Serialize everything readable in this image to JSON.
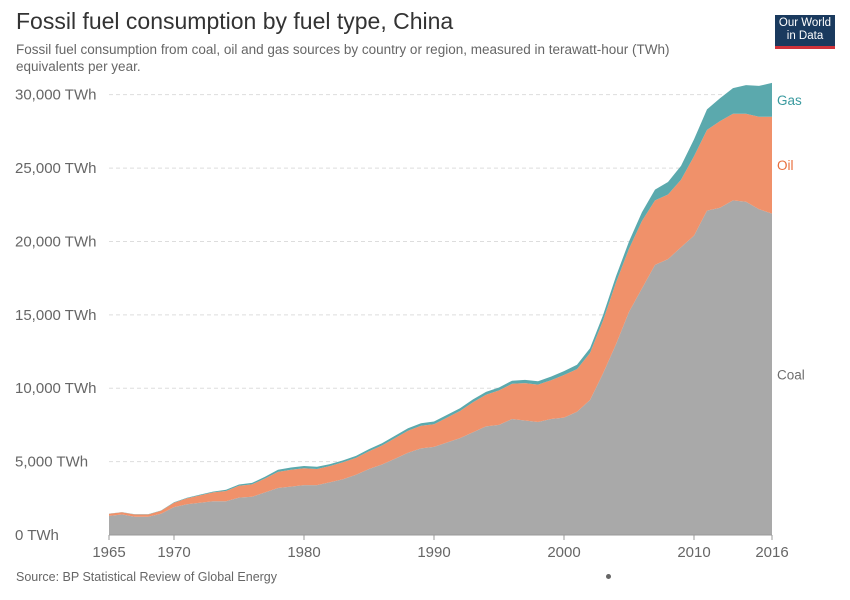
{
  "header": {
    "title": "Fossil fuel consumption by fuel type, China",
    "subtitle": "Fossil fuel consumption from coal, oil and gas sources by country or region, measured in terawatt-hour (TWh) equivalents per year.",
    "logo_line1": "Our World",
    "logo_line2": "in Data"
  },
  "footer": {
    "source": "Source: BP Statistical Review of Global Energy"
  },
  "colors": {
    "coal": "#a9a9a9",
    "oil": "#f0916a",
    "gas": "#5ba9ad",
    "coal_label": "#6e6e6e",
    "oil_label": "#e8703e",
    "gas_label": "#3a9a9f"
  },
  "chart_data": {
    "type": "area",
    "stacked": true,
    "x": [
      1965,
      1966,
      1967,
      1968,
      1969,
      1970,
      1971,
      1972,
      1973,
      1974,
      1975,
      1976,
      1977,
      1978,
      1979,
      1980,
      1981,
      1982,
      1983,
      1984,
      1985,
      1986,
      1987,
      1988,
      1989,
      1990,
      1991,
      1992,
      1993,
      1994,
      1995,
      1996,
      1997,
      1998,
      1999,
      2000,
      2001,
      2002,
      2003,
      2004,
      2005,
      2006,
      2007,
      2008,
      2009,
      2010,
      2011,
      2012,
      2013,
      2014,
      2015,
      2016
    ],
    "series": [
      {
        "name": "Coal",
        "values": [
          1300,
          1400,
          1250,
          1250,
          1450,
          1900,
          2100,
          2200,
          2300,
          2300,
          2550,
          2600,
          2900,
          3200,
          3300,
          3400,
          3400,
          3600,
          3800,
          4100,
          4500,
          4800,
          5200,
          5600,
          5900,
          6000,
          6300,
          6600,
          7000,
          7400,
          7500,
          7900,
          7800,
          7700,
          7900,
          8000,
          8400,
          9200,
          11000,
          13000,
          15200,
          16800,
          18400,
          18800,
          19600,
          20400,
          22100,
          22300,
          22800,
          22700,
          22200,
          21900
        ]
      },
      {
        "name": "Oil",
        "values": [
          150,
          150,
          150,
          150,
          200,
          300,
          400,
          500,
          600,
          700,
          800,
          850,
          950,
          1100,
          1150,
          1150,
          1100,
          1100,
          1150,
          1150,
          1200,
          1300,
          1400,
          1500,
          1550,
          1550,
          1700,
          1850,
          2050,
          2150,
          2350,
          2400,
          2550,
          2550,
          2650,
          2900,
          2900,
          3200,
          3600,
          4200,
          4300,
          4600,
          4400,
          4400,
          4600,
          5400,
          5500,
          5900,
          5900,
          6000,
          6300,
          6600
        ]
      },
      {
        "name": "Gas",
        "values": [
          10,
          10,
          10,
          10,
          20,
          30,
          40,
          50,
          60,
          80,
          90,
          100,
          120,
          140,
          150,
          150,
          150,
          130,
          130,
          140,
          150,
          150,
          160,
          170,
          170,
          180,
          180,
          190,
          190,
          200,
          200,
          210,
          220,
          230,
          240,
          270,
          300,
          320,
          370,
          430,
          500,
          600,
          730,
          850,
          950,
          1150,
          1400,
          1550,
          1750,
          1950,
          2100,
          2300
        ]
      }
    ],
    "ylim": [
      0,
      31000
    ],
    "yticks": [
      "0 TWh",
      "5,000 TWh",
      "10,000 TWh",
      "15,000 TWh",
      "20,000 TWh",
      "25,000 TWh",
      "30,000 TWh"
    ],
    "ytick_values": [
      0,
      5000,
      10000,
      15000,
      20000,
      25000,
      30000
    ],
    "xticks": [
      "1965",
      "1970",
      "1980",
      "1990",
      "2000",
      "2010",
      "2016"
    ],
    "xtick_values": [
      1965,
      1970,
      1980,
      1990,
      2000,
      2010,
      2016
    ],
    "grid": "horizontal-dashed",
    "legend": "right-inline"
  }
}
